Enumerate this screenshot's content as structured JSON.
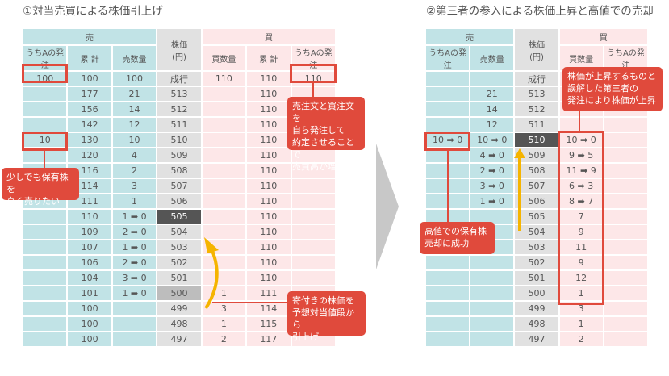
{
  "colors": {
    "sell": "#c1e3e6",
    "price": "#e1e1e1",
    "buy": "#fde7e8",
    "accent": "#e04a3c",
    "arrow": "#f5b400",
    "current": "#555555"
  },
  "left": {
    "title": "①対当売買による株価引上げ",
    "header": {
      "sell": "売",
      "price": "株価\n(円)",
      "buy": "買"
    },
    "columns": [
      "うちAの発注",
      "累 計",
      "売数量",
      "買数量",
      "累 計",
      "うちAの発注"
    ],
    "rows": [
      [
        "100",
        "100",
        "100",
        "成行",
        "110",
        "110",
        "110"
      ],
      [
        "",
        "177",
        "21",
        "513",
        "",
        "110",
        ""
      ],
      [
        "",
        "156",
        "14",
        "512",
        "",
        "110",
        ""
      ],
      [
        "",
        "142",
        "12",
        "511",
        "",
        "110",
        ""
      ],
      [
        "10",
        "130",
        "10",
        "510",
        "",
        "110",
        ""
      ],
      [
        "",
        "120",
        "4",
        "509",
        "",
        "110",
        ""
      ],
      [
        "",
        "116",
        "2",
        "508",
        "",
        "110",
        ""
      ],
      [
        "",
        "114",
        "3",
        "507",
        "",
        "110",
        ""
      ],
      [
        "",
        "111",
        "1",
        "506",
        "",
        "110",
        ""
      ],
      [
        "",
        "110",
        "1 ➡ 0",
        "505",
        "",
        "110",
        ""
      ],
      [
        "",
        "109",
        "2 ➡ 0",
        "504",
        "",
        "110",
        ""
      ],
      [
        "",
        "107",
        "1 ➡ 0",
        "503",
        "",
        "110",
        ""
      ],
      [
        "",
        "106",
        "2 ➡ 0",
        "502",
        "",
        "110",
        ""
      ],
      [
        "",
        "104",
        "3 ➡ 0",
        "501",
        "",
        "110",
        ""
      ],
      [
        "",
        "101",
        "1 ➡ 0",
        "500",
        "1",
        "111",
        ""
      ],
      [
        "",
        "100",
        "",
        "499",
        "3",
        "114",
        ""
      ],
      [
        "",
        "100",
        "",
        "498",
        "1",
        "115",
        ""
      ],
      [
        "",
        "100",
        "",
        "497",
        "2",
        "117",
        ""
      ]
    ],
    "current_price": "505",
    "opening_price": "500",
    "callouts": {
      "sell_high": "少しでも保有株を\n高く売りたい",
      "self_trade": "売注文と買注文を\n自ら発注して\n約定させることで\n売買高が増加",
      "raise_open": "寄付きの株価を\n予想対当値段から\n引上げ"
    }
  },
  "right": {
    "title": "②第三者の参入による株価上昇と高値での売却",
    "header": {
      "sell": "売",
      "price": "株価\n(円)",
      "buy": "買"
    },
    "columns": [
      "うちAの発注",
      "売数量",
      "買数量",
      "うちAの発注"
    ],
    "rows": [
      [
        "",
        "",
        "成行",
        "",
        ""
      ],
      [
        "",
        "21",
        "513",
        "",
        ""
      ],
      [
        "",
        "14",
        "512",
        "",
        ""
      ],
      [
        "",
        "12",
        "511",
        "",
        ""
      ],
      [
        "10 ➡ 0",
        "10 ➡ 0",
        "510",
        "10 ➡ 0",
        ""
      ],
      [
        "",
        "4 ➡ 0",
        "509",
        "9 ➡ 5",
        ""
      ],
      [
        "",
        "2 ➡ 0",
        "508",
        "11 ➡ 9",
        ""
      ],
      [
        "",
        "3 ➡ 0",
        "507",
        "6 ➡ 3",
        ""
      ],
      [
        "",
        "1 ➡ 0",
        "506",
        "8 ➡ 7",
        ""
      ],
      [
        "",
        "",
        "505",
        "7",
        ""
      ],
      [
        "",
        "",
        "504",
        "9",
        ""
      ],
      [
        "",
        "",
        "503",
        "11",
        ""
      ],
      [
        "",
        "",
        "502",
        "9",
        ""
      ],
      [
        "",
        "",
        "501",
        "12",
        ""
      ],
      [
        "",
        "",
        "500",
        "1",
        ""
      ],
      [
        "",
        "",
        "499",
        "3",
        ""
      ],
      [
        "",
        "",
        "498",
        "1",
        ""
      ],
      [
        "",
        "",
        "497",
        "2",
        ""
      ]
    ],
    "current_price": "510",
    "callouts": {
      "third_party": "株価が上昇するものと\n誤解した第三者の\n発注により株価が上昇",
      "sold_high": "高値での保有株\n売却に成功"
    }
  }
}
